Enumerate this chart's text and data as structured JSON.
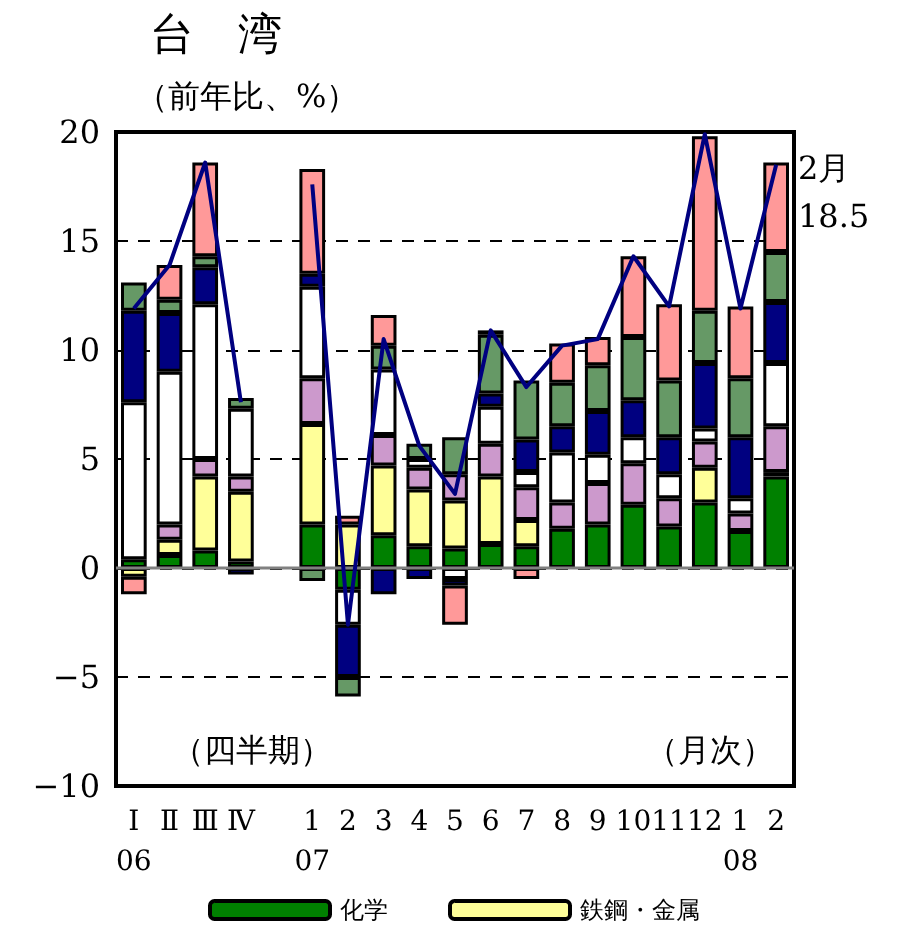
{
  "chart_data": {
    "type": "bar",
    "stacked": true,
    "title": "台　湾",
    "ylabel": "（前年比、%）",
    "categories": [
      "Ⅰ\n06",
      "Ⅱ",
      "Ⅲ",
      "Ⅳ",
      null,
      "1\n07",
      "2",
      "3",
      "4",
      "5",
      "6",
      "7",
      "8",
      "9",
      "10",
      "11",
      "12",
      "1\n08",
      "2"
    ],
    "series": [
      {
        "name": "化学",
        "color": "#008000",
        "values": [
          0.4,
          0.6,
          0.8,
          0.3,
          null,
          2.0,
          -1.0,
          1.5,
          1.0,
          0.9,
          1.1,
          1.0,
          1.8,
          2.0,
          2.9,
          1.9,
          3.0,
          1.7,
          4.2
        ]
      },
      {
        "name": "鉄鋼・金属",
        "color": "#ffff99",
        "values": [
          -0.4,
          0.7,
          3.4,
          3.2,
          null,
          4.6,
          2.0,
          3.2,
          2.6,
          2.2,
          3.1,
          1.2,
          null,
          null,
          null,
          null,
          1.6,
          null,
          0.2
        ]
      },
      {
        "color": "#cc99cc",
        "values": [
          null,
          0.7,
          0.8,
          0.7,
          null,
          2.1,
          null,
          1.4,
          1.0,
          1.2,
          1.5,
          1.5,
          1.2,
          1.9,
          1.9,
          1.3,
          1.2,
          0.8,
          2.1
        ]
      },
      {
        "color": "#ffffff",
        "values": [
          7.2,
          7.0,
          7.1,
          3.1,
          null,
          4.2,
          -1.6,
          3.0,
          0.4,
          -0.5,
          1.7,
          0.7,
          2.3,
          1.3,
          1.2,
          1.1,
          0.6,
          0.7,
          2.9
        ]
      },
      {
        "color": "#000080",
        "values": [
          4.2,
          2.7,
          1.7,
          -0.3,
          null,
          0.6,
          -2.4,
          -1.2,
          -0.5,
          -0.3,
          0.6,
          1.5,
          1.2,
          2.0,
          1.7,
          1.7,
          3.0,
          2.8,
          2.8
        ]
      },
      {
        "color": "#669966",
        "values": [
          1.3,
          0.6,
          0.5,
          0.5,
          null,
          -0.6,
          -0.9,
          1.1,
          0.7,
          1.7,
          2.7,
          2.7,
          2.0,
          2.1,
          2.9,
          2.6,
          2.4,
          2.7,
          2.3
        ]
      },
      {
        "color": "#ff9999",
        "values": [
          -0.8,
          1.6,
          4.3,
          null,
          null,
          4.8,
          0.4,
          1.4,
          null,
          -1.8,
          0.2,
          -0.5,
          1.8,
          1.3,
          3.7,
          3.5,
          8.0,
          3.3,
          4.1
        ]
      },
      {
        "type": "line",
        "color": "#000080",
        "values": [
          11.9,
          13.9,
          18.6,
          7.6,
          null,
          17.6,
          -2.6,
          10.5,
          5.6,
          3.4,
          10.9,
          8.3,
          10.2,
          10.5,
          14.3,
          12.0,
          19.9,
          11.9,
          18.5
        ]
      }
    ],
    "ylim": [
      -10,
      20
    ],
    "yticks": [
      {
        "value": -10,
        "label": "−10"
      },
      {
        "value": -5,
        "label": "−5"
      },
      0,
      5,
      10,
      15,
      20
    ],
    "grid": "y",
    "legend": "bottom",
    "marker": "none",
    "ref_lines": [
      {
        "axis": "y",
        "value": 0,
        "color": "#808080"
      }
    ],
    "annotations": [
      "（四半期）",
      "（月次）",
      "2月\n18.5"
    ]
  }
}
